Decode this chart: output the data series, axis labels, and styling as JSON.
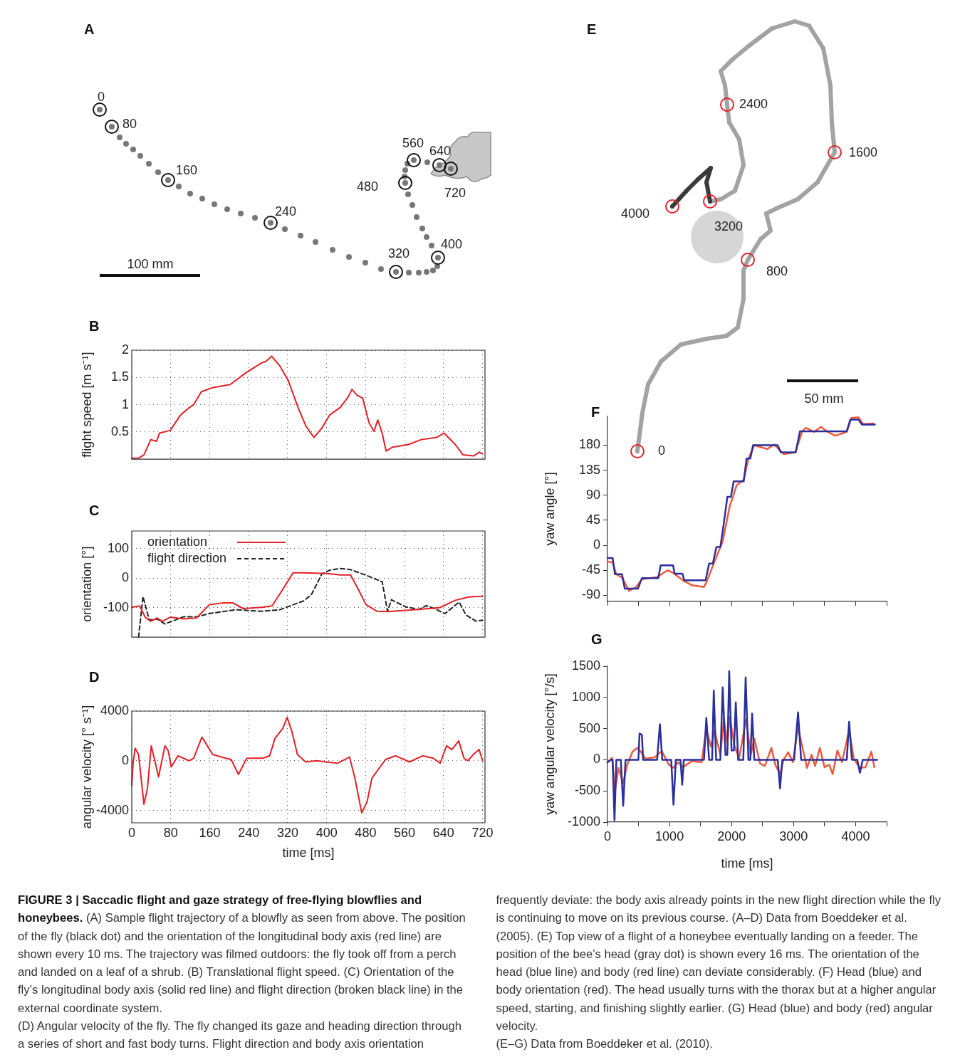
{
  "chart_data": [
    {
      "type": "other",
      "title": "A",
      "annotations": [
        "0",
        "80",
        "160",
        "240",
        "320",
        "400",
        "480",
        "560",
        "640",
        "720",
        "100 mm"
      ]
    },
    {
      "type": "line",
      "title": "B",
      "ylabel": "flight speed [m s⁻¹]",
      "xlim": [
        0,
        725
      ],
      "ylim": [
        0,
        2
      ],
      "xticks": [
        0,
        80,
        160,
        240,
        320,
        400,
        480,
        560,
        640,
        720
      ],
      "yticks": [
        0.5,
        1,
        1.5,
        2
      ],
      "grid": true,
      "tick_labels": "y",
      "series": [
        {
          "color": "#e32128",
          "x": [
            0,
            14,
            25,
            39,
            51,
            57,
            79,
            100,
            117,
            127,
            143,
            165,
            202,
            235,
            267,
            275,
            287,
            304,
            321,
            342,
            358,
            374,
            390,
            406,
            428,
            444,
            452,
            463,
            474,
            487,
            497,
            505,
            514,
            522,
            535,
            568,
            594,
            626,
            641,
            664,
            680,
            702,
            713,
            720
          ],
          "values": [
            0.02,
            0.02,
            0.08,
            0.36,
            0.33,
            0.48,
            0.53,
            0.81,
            0.94,
            1.0,
            1.24,
            1.31,
            1.37,
            1.59,
            1.77,
            1.79,
            1.89,
            1.71,
            1.45,
            0.93,
            0.6,
            0.4,
            0.57,
            0.81,
            0.95,
            1.14,
            1.28,
            1.17,
            1.12,
            0.67,
            0.51,
            0.72,
            0.48,
            0.15,
            0.22,
            0.27,
            0.36,
            0.4,
            0.48,
            0.27,
            0.08,
            0.06,
            0.13,
            0.1
          ]
        }
      ]
    },
    {
      "type": "line",
      "title": "C",
      "ylabel": "orientation [°]",
      "xlim": [
        0,
        725
      ],
      "ylim": [
        -200,
        160
      ],
      "xticks": [
        0,
        80,
        160,
        240,
        320,
        400,
        480,
        560,
        640,
        720
      ],
      "yticks": [
        -100,
        0,
        100
      ],
      "grid": true,
      "tick_labels": "y",
      "legend": "top left",
      "series": [
        {
          "name": "orientation",
          "color": "#e32128",
          "x": [
            0,
            16,
            28,
            39,
            52,
            63,
            79,
            106,
            133,
            159,
            186,
            208,
            229,
            267,
            288,
            310,
            331,
            353,
            401,
            428,
            449,
            465,
            481,
            503,
            525,
            578,
            632,
            664,
            691,
            707,
            720
          ],
          "values": [
            -99,
            -94,
            -133,
            -146,
            -135,
            -146,
            -132,
            -138,
            -135,
            -90,
            -84,
            -84,
            -103,
            -99,
            -94,
            -38,
            18,
            18,
            16,
            11,
            11,
            -38,
            -90,
            -112,
            -113,
            -107,
            -100,
            -75,
            -64,
            -62,
            -62
          ]
        },
        {
          "name": "flight direction",
          "color": "#222222",
          "line_style": "dashed",
          "x": [
            14,
            23,
            36,
            52,
            68,
            84,
            106,
            133,
            159,
            213,
            267,
            304,
            331,
            353,
            369,
            390,
            406,
            428,
            449,
            481,
            514,
            525,
            533,
            562,
            589,
            605,
            621,
            643,
            672,
            686,
            707,
            720
          ],
          "values": [
            -200,
            -62,
            -142,
            -138,
            -155,
            -145,
            -131,
            -131,
            -120,
            -107,
            -112,
            -107,
            -90,
            -77,
            -55,
            14,
            27,
            33,
            29,
            10,
            -12,
            -112,
            -73,
            -97,
            -106,
            -93,
            -103,
            -120,
            -81,
            -125,
            -146,
            -142
          ]
        }
      ]
    },
    {
      "type": "line",
      "title": "D",
      "ylabel": "angular velocity [° s⁻¹]",
      "xlabel": "time [ms]",
      "xlim": [
        0,
        725
      ],
      "ylim": [
        -5000,
        4000
      ],
      "xticks": [
        0,
        80,
        160,
        240,
        320,
        400,
        480,
        560,
        640,
        720
      ],
      "yticks": [
        -4000,
        0,
        4000
      ],
      "grid": true,
      "series": [
        {
          "color": "#e32128",
          "x": [
            0,
            3,
            7,
            14,
            25,
            32,
            40,
            48,
            55,
            68,
            75,
            81,
            95,
            117,
            127,
            144,
            149,
            166,
            193,
            204,
            219,
            236,
            269,
            283,
            294,
            310,
            319,
            329,
            340,
            357,
            379,
            422,
            447,
            458,
            472,
            483,
            493,
            521,
            542,
            570,
            597,
            619,
            633,
            646,
            657,
            671,
            682,
            690,
            701,
            713,
            720
          ],
          "values": [
            -2000,
            -100,
            1000,
            500,
            -3500,
            -2300,
            1200,
            -100,
            -1300,
            1200,
            800,
            -500,
            400,
            0,
            200,
            1900,
            1600,
            500,
            200,
            100,
            -1100,
            200,
            200,
            400,
            1800,
            2600,
            3500,
            2300,
            500,
            -100,
            0,
            -200,
            300,
            -1400,
            -4200,
            -3300,
            -1400,
            100,
            400,
            -100,
            400,
            200,
            -200,
            1200,
            900,
            1600,
            200,
            0,
            500,
            900,
            0
          ]
        }
      ]
    },
    {
      "type": "other",
      "title": "E",
      "annotations": [
        "0",
        "800",
        "1600",
        "2400",
        "3200",
        "4000",
        "50 mm"
      ]
    },
    {
      "type": "line",
      "title": "F",
      "ylabel": "yaw angle [°]",
      "xlim": [
        0,
        4500
      ],
      "ylim": [
        -101,
        232
      ],
      "xticks": [
        0,
        500,
        1000,
        1500,
        2000,
        2500,
        3000,
        3500,
        4000,
        4500
      ],
      "yticks": [
        -90,
        -45,
        0,
        45,
        90,
        135,
        180
      ],
      "tick_labels": "y",
      "series": [
        {
          "color": "#2a2f9c",
          "x": [
            0,
            83,
            121,
            234,
            279,
            491,
            555,
            819,
            857,
            1057,
            1083,
            1208,
            1238,
            1581,
            1638,
            1698,
            1755,
            1819,
            1876,
            1932,
            1989,
            2034,
            2196,
            2242,
            2302,
            2347,
            2744,
            2793,
            3034,
            3102,
            3857,
            3914,
            4046,
            4103,
            4310
          ],
          "values": [
            -23,
            -23,
            -52,
            -52,
            -78,
            -78,
            -59,
            -59,
            -36,
            -36,
            -51,
            -51,
            -63,
            -63,
            -33,
            -33,
            -3,
            -3,
            40,
            87,
            87,
            115,
            115,
            156,
            156,
            180,
            180,
            167,
            167,
            205,
            205,
            226,
            226,
            217,
            217
          ]
        },
        {
          "color": "#ef5a3c",
          "x": [
            0,
            83,
            140,
            234,
            347,
            460,
            555,
            800,
            970,
            1064,
            1215,
            1366,
            1555,
            1593,
            1687,
            1857,
            1970,
            2083,
            2196,
            2272,
            2366,
            2574,
            2687,
            2838,
            3027,
            3140,
            3196,
            3328,
            3442,
            3536,
            3668,
            3781,
            3857,
            3932,
            4046,
            4121,
            4291
          ],
          "values": [
            -29,
            -31,
            -52,
            -58,
            -82,
            -75,
            -61,
            -57,
            -45,
            -50,
            -63,
            -72,
            -75,
            -67,
            -40,
            7,
            70,
            108,
            118,
            156,
            180,
            173,
            181,
            164,
            167,
            205,
            211,
            204,
            213,
            205,
            197,
            201,
            204,
            229,
            230,
            218,
            219
          ]
        }
      ]
    },
    {
      "type": "line",
      "title": "G",
      "ylabel": "yaw angular velocity [°/s]",
      "xlabel": "time [ms]",
      "xlim": [
        0,
        4500
      ],
      "ylim": [
        -1000,
        1500
      ],
      "xticks": [
        0,
        {
          "value": 500,
          "label": null
        },
        1000,
        {
          "value": 1500,
          "label": null
        },
        2000,
        {
          "value": 2500,
          "label": null
        },
        3000,
        {
          "value": 3500,
          "label": null
        },
        4000,
        {
          "value": 4500,
          "label": null
        }
      ],
      "yticks": [
        -1000,
        -500,
        0,
        500,
        1000,
        1500
      ],
      "series": [
        {
          "color": "#2a2f9c",
          "x": [
            0,
            53,
            83,
            113,
            143,
            215,
            253,
            291,
            498,
            517,
            555,
            574,
            800,
            845,
            883,
            1027,
            1064,
            1102,
            1177,
            1204,
            1230,
            1555,
            1593,
            1638,
            1687,
            1713,
            1751,
            1819,
            1857,
            1902,
            1932,
            1962,
            2000,
            2038,
            2068,
            2106,
            2189,
            2227,
            2272,
            2302,
            2332,
            2366,
            2744,
            2781,
            2819,
            3008,
            3072,
            3121,
            3857,
            3895,
            3940,
            4027,
            4069,
            4114,
            4348
          ],
          "values": [
            -40,
            0,
            0,
            -970,
            0,
            0,
            -740,
            0,
            0,
            420,
            400,
            0,
            0,
            570,
            0,
            0,
            -720,
            0,
            0,
            -400,
            0,
            0,
            670,
            0,
            0,
            1110,
            0,
            0,
            1160,
            80,
            80,
            1420,
            150,
            150,
            920,
            0,
            0,
            1320,
            0,
            0,
            740,
            0,
            0,
            -460,
            0,
            0,
            760,
            0,
            0,
            610,
            0,
            0,
            -210,
            0,
            0
          ]
        },
        {
          "color": "#ef5a3c",
          "x": [
            0,
            75,
            121,
            177,
            253,
            310,
            404,
            479,
            536,
            611,
            762,
            875,
            989,
            1064,
            1140,
            1215,
            1366,
            1517,
            1593,
            1668,
            1725,
            1819,
            1876,
            1932,
            1970,
            2045,
            2121,
            2234,
            2310,
            2366,
            2460,
            2536,
            2642,
            2706,
            2781,
            2838,
            2913,
            2989,
            3072,
            3140,
            3215,
            3291,
            3347,
            3423,
            3498,
            3574,
            3630,
            3706,
            3781,
            3895,
            3970,
            4065,
            4159,
            4253,
            4302
          ],
          "values": [
            -40,
            30,
            -500,
            -130,
            -380,
            -100,
            130,
            190,
            130,
            20,
            40,
            140,
            -80,
            -130,
            -40,
            -120,
            -20,
            -40,
            500,
            210,
            460,
            80,
            650,
            270,
            690,
            230,
            20,
            650,
            80,
            340,
            -60,
            -100,
            190,
            -80,
            -230,
            0,
            120,
            -40,
            520,
            210,
            -130,
            80,
            -100,
            190,
            -120,
            -80,
            -230,
            150,
            -40,
            480,
            20,
            -130,
            -120,
            130,
            -120
          ]
        }
      ]
    },
    {
      "type": "other",
      "title": "FIGURE 3 | Saccadic flight and gaze strategy of free-flying blowflies and honeybees.",
      "annotations": [
        "(A) Sample flight trajectory of a blowfly as seen from above. The position of the fly (black dot) and the orientation of the longitudinal body axis (red line) are shown every 10 ms. The trajectory was filmed outdoors: the fly took off from a perch and landed on a leaf of a shrub. (B) Translational flight speed. (C) Orientation of the fly’s longitudinal body axis (solid red line) and flight direction (broken black line) in the external coordinate system.",
        "(D) Angular velocity of the fly. The fly changed its gaze and heading direction through a series of short and fast body turns. Flight direction and body axis orientation frequently deviate: the body axis already points in the new flight direction while the fly is continuing to move on its previous course. (A–D) Data from Boeddeker et al. (2005). (E) Top view of a flight of a honeybee eventually landing on a feeder. The position of the bee’s head (gray dot) is shown every 16 ms. The orientation of the head (blue line) and body (red line) can deviate considerably. (F) Head (blue) and body orientation (red). The head usually turns with the thorax but at a higher angular speed, starting, and finishing slightly earlier. (G) Head (blue) and body (red) angular velocity.",
        "(E–G) Data from Boeddeker et al. (2010)."
      ]
    }
  ]
}
